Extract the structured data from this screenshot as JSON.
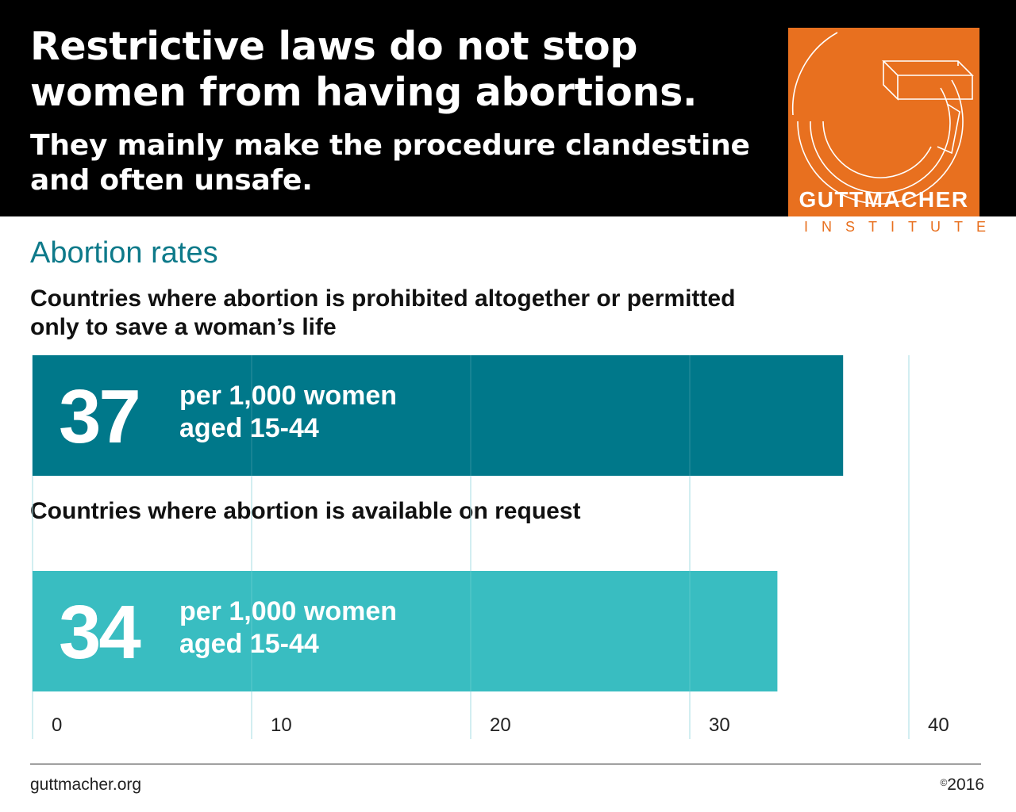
{
  "header": {
    "headline": "Restrictive laws do not stop women from having abortions.",
    "subhead": "They mainly make the procedure clandestine and often unsafe."
  },
  "logo": {
    "name": "GUTTMACHER",
    "subname": "INSTITUTE",
    "color": "#E8701F"
  },
  "chart_data": {
    "type": "bar",
    "orientation": "horizontal",
    "title": "Abortion rates",
    "categories": [
      "Countries where abortion is prohibited altogether or permitted only to save a woman’s life",
      "Countries where abortion is available on request"
    ],
    "values": [
      37,
      34
    ],
    "value_labels": [
      "37",
      "34"
    ],
    "unit_label": "per 1,000 women aged 15-44",
    "unit_lines": [
      "per 1,000 women",
      "aged 15-44"
    ],
    "colors": [
      "#00788A",
      "#39BDC1"
    ],
    "xlim": [
      0,
      40
    ],
    "xticks": [
      0,
      10,
      20,
      30,
      40
    ],
    "xtick_labels": [
      "0",
      "10",
      "20",
      "30",
      "40"
    ],
    "grid": true
  },
  "footer": {
    "source": "guttmacher.org",
    "copyright_symbol": "©",
    "year": "2016"
  }
}
